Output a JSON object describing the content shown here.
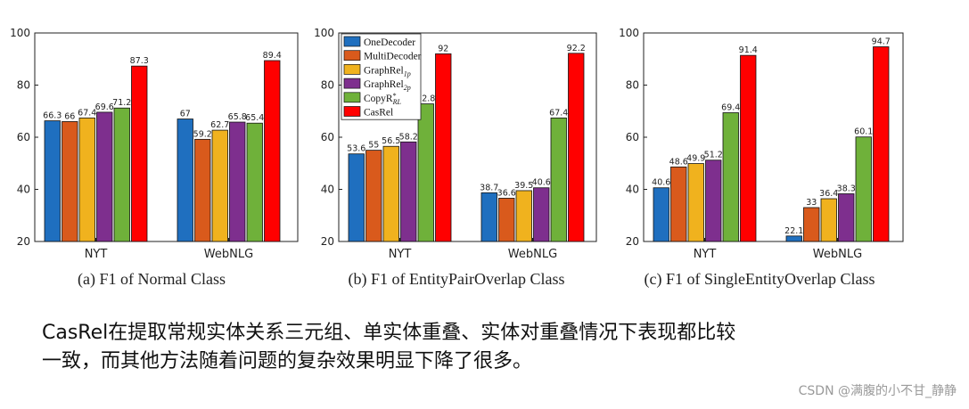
{
  "legend": [
    {
      "label": "OneDecoder"
    },
    {
      "label": "MultiDecoder"
    },
    {
      "label": "GraphRel",
      "sub": "1p"
    },
    {
      "label": "GraphRel",
      "sub": "2p"
    },
    {
      "label": "CopyR",
      "sup": "*",
      "sub": "RL"
    },
    {
      "label": "CasRel"
    }
  ],
  "colors": [
    "#1f6fbf",
    "#d95a1c",
    "#f0b21e",
    "#7e2f8e",
    "#6fb13a",
    "#ff0000"
  ],
  "chart_data": [
    {
      "type": "bar",
      "caption": "(a)  F1 of Normal Class",
      "categories": [
        "NYT",
        "WebNLG"
      ],
      "ylim": [
        20,
        100
      ],
      "yticks": [
        20,
        40,
        60,
        80,
        100
      ],
      "series": [
        {
          "name": "OneDecoder",
          "values": [
            66.3,
            67
          ]
        },
        {
          "name": "MultiDecoder",
          "values": [
            66,
            59.2
          ]
        },
        {
          "name": "GraphRel1p",
          "values": [
            67.4,
            62.7
          ]
        },
        {
          "name": "GraphRel2p",
          "values": [
            69.6,
            65.8
          ]
        },
        {
          "name": "CopyR*RL",
          "values": [
            71.2,
            65.4
          ]
        },
        {
          "name": "CasRel",
          "values": [
            87.3,
            89.4
          ]
        }
      ]
    },
    {
      "type": "bar",
      "caption": "(b)  F1 of EntityPairOverlap Class",
      "categories": [
        "NYT",
        "WebNLG"
      ],
      "ylim": [
        20,
        100
      ],
      "yticks": [
        20,
        40,
        60,
        80,
        100
      ],
      "legend": "top-left",
      "series": [
        {
          "name": "OneDecoder",
          "values": [
            53.6,
            38.7
          ]
        },
        {
          "name": "MultiDecoder",
          "values": [
            55,
            36.6
          ]
        },
        {
          "name": "GraphRel1p",
          "values": [
            56.5,
            39.5
          ]
        },
        {
          "name": "GraphRel2p",
          "values": [
            58.2,
            40.6
          ]
        },
        {
          "name": "CopyR*RL",
          "values": [
            72.8,
            67.4
          ]
        },
        {
          "name": "CasRel",
          "values": [
            92,
            92.2
          ]
        }
      ]
    },
    {
      "type": "bar",
      "caption": "(c)  F1 of SingleEntityOverlap Class",
      "categories": [
        "NYT",
        "WebNLG"
      ],
      "ylim": [
        20,
        100
      ],
      "yticks": [
        20,
        40,
        60,
        80,
        100
      ],
      "series": [
        {
          "name": "OneDecoder",
          "values": [
            40.6,
            22.1
          ]
        },
        {
          "name": "MultiDecoder",
          "values": [
            48.6,
            33
          ]
        },
        {
          "name": "GraphRel1p",
          "values": [
            49.9,
            36.4
          ]
        },
        {
          "name": "GraphRel2p",
          "values": [
            51.2,
            38.3
          ]
        },
        {
          "name": "CopyR*RL",
          "values": [
            69.4,
            60.1
          ]
        },
        {
          "name": "CasRel",
          "values": [
            91.4,
            94.7
          ]
        }
      ]
    }
  ],
  "description": {
    "line1": "CasRel在提取常规实体关系三元组、单实体重叠、实体对重叠情况下表现都比较",
    "line2": "一致，而其他方法随着问题的复杂效果明显下降了很多。"
  },
  "watermark": "CSDN @满腹的小不甘_静静"
}
